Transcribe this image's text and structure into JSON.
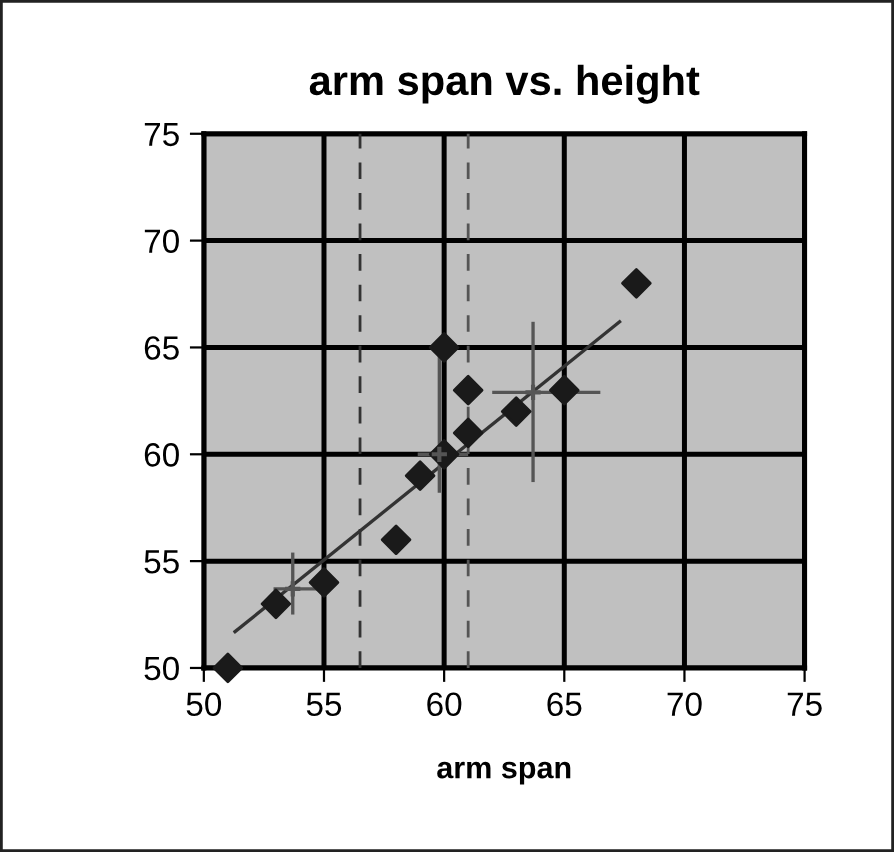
{
  "chart_data": {
    "type": "scatter",
    "title": "arm span vs. height",
    "xlabel": "arm span",
    "xlim": [
      50,
      75
    ],
    "ylim": [
      50,
      75
    ],
    "xticks": [
      50,
      55,
      60,
      65,
      70,
      75
    ],
    "yticks": [
      50,
      55,
      60,
      65,
      70,
      75
    ],
    "grid": true,
    "series": [
      {
        "color": "#1a1a1a",
        "marker": "diamond",
        "x": [
          51,
          53,
          55,
          58,
          59,
          60,
          60,
          61,
          61,
          63,
          65,
          68
        ],
        "values": [
          50,
          53,
          54,
          56,
          59,
          60,
          65,
          61,
          63,
          62,
          63,
          68
        ]
      },
      {
        "type": "line",
        "color": "#333333",
        "marker": "none",
        "line_style": "solid",
        "x": [
          51.3,
          67.3
        ],
        "values": [
          51.7,
          66.2
        ]
      },
      {
        "type": "scatter",
        "color": "#555555",
        "marker": "cross",
        "x": [
          53.7,
          59.8,
          63.7
        ],
        "values": [
          53.7,
          60,
          62.9
        ],
        "errors": [
          [
            52.5,
            55.4
          ],
          [
            58.2,
            65
          ],
          [
            58.7,
            66.2
          ]
        ],
        "xerrors": [
          [
            52.9,
            55
          ],
          [
            58.9,
            61
          ],
          [
            62,
            66.5
          ]
        ]
      }
    ],
    "ref_lines": [
      {
        "axis": "x",
        "value": 56.5,
        "color": "#333333",
        "line_style": "dashed"
      },
      {
        "axis": "x",
        "value": 61,
        "color": "#555555",
        "line_style": "dashed"
      }
    ]
  }
}
